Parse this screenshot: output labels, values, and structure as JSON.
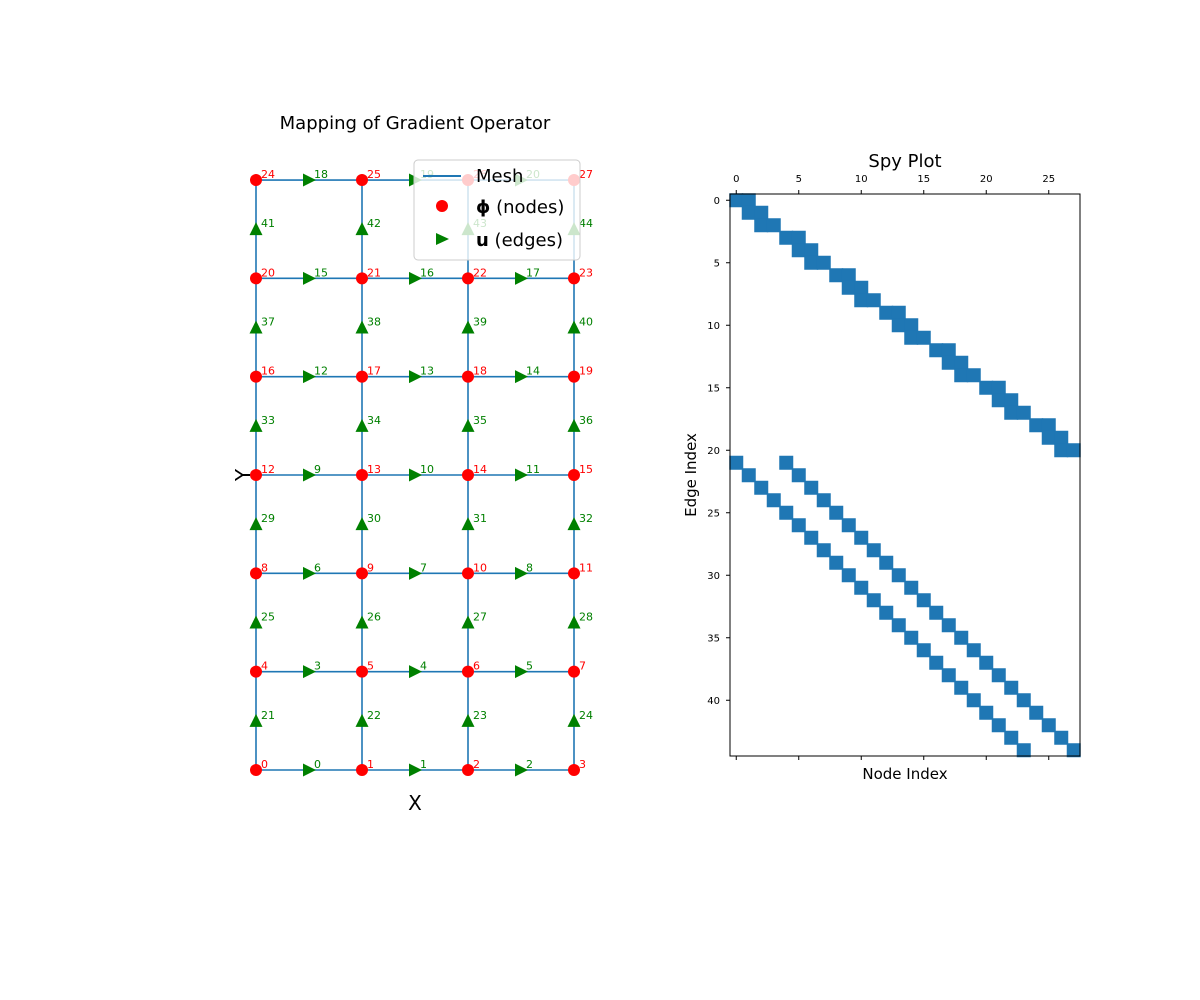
{
  "chart_data": [
    {
      "type": "scatter",
      "title": "Mapping of Gradient Operator",
      "xlabel": "X",
      "ylabel": "Y",
      "grid_size": [
        4,
        7
      ],
      "legend": {
        "placement": "top-right",
        "entries": [
          {
            "key": "mesh",
            "label": "Mesh",
            "color": "#1f77b4"
          },
          {
            "key": "nodes",
            "symbol": "ϕ",
            "label": " (nodes)",
            "color": "#ff0000"
          },
          {
            "key": "edges",
            "symbol": "u",
            "label": " (edges)",
            "color": "#008000"
          }
        ]
      },
      "colors": {
        "mesh": "#1f77b4",
        "nodes": "#ff0000",
        "edges": "#008000"
      },
      "nodes": [
        {
          "id": 0,
          "x": 0,
          "y": 0
        },
        {
          "id": 1,
          "x": 1,
          "y": 0
        },
        {
          "id": 2,
          "x": 2,
          "y": 0
        },
        {
          "id": 3,
          "x": 3,
          "y": 0
        },
        {
          "id": 4,
          "x": 0,
          "y": 1
        },
        {
          "id": 5,
          "x": 1,
          "y": 1
        },
        {
          "id": 6,
          "x": 2,
          "y": 1
        },
        {
          "id": 7,
          "x": 3,
          "y": 1
        },
        {
          "id": 8,
          "x": 0,
          "y": 2
        },
        {
          "id": 9,
          "x": 1,
          "y": 2
        },
        {
          "id": 10,
          "x": 2,
          "y": 2
        },
        {
          "id": 11,
          "x": 3,
          "y": 2
        },
        {
          "id": 12,
          "x": 0,
          "y": 3
        },
        {
          "id": 13,
          "x": 1,
          "y": 3
        },
        {
          "id": 14,
          "x": 2,
          "y": 3
        },
        {
          "id": 15,
          "x": 3,
          "y": 3
        },
        {
          "id": 16,
          "x": 0,
          "y": 4
        },
        {
          "id": 17,
          "x": 1,
          "y": 4
        },
        {
          "id": 18,
          "x": 2,
          "y": 4
        },
        {
          "id": 19,
          "x": 3,
          "y": 4
        },
        {
          "id": 20,
          "x": 0,
          "y": 5
        },
        {
          "id": 21,
          "x": 1,
          "y": 5
        },
        {
          "id": 22,
          "x": 2,
          "y": 5
        },
        {
          "id": 23,
          "x": 3,
          "y": 5
        },
        {
          "id": 24,
          "x": 0,
          "y": 6
        },
        {
          "id": 25,
          "x": 1,
          "y": 6
        },
        {
          "id": 26,
          "x": 2,
          "y": 6
        },
        {
          "id": 27,
          "x": 3,
          "y": 6
        }
      ],
      "edges": [
        {
          "id": 0,
          "x": 0.5,
          "y": 0,
          "dir": "right"
        },
        {
          "id": 1,
          "x": 1.5,
          "y": 0,
          "dir": "right"
        },
        {
          "id": 2,
          "x": 2.5,
          "y": 0,
          "dir": "right"
        },
        {
          "id": 3,
          "x": 0.5,
          "y": 1,
          "dir": "right"
        },
        {
          "id": 4,
          "x": 1.5,
          "y": 1,
          "dir": "right"
        },
        {
          "id": 5,
          "x": 2.5,
          "y": 1,
          "dir": "right"
        },
        {
          "id": 6,
          "x": 0.5,
          "y": 2,
          "dir": "right"
        },
        {
          "id": 7,
          "x": 1.5,
          "y": 2,
          "dir": "right"
        },
        {
          "id": 8,
          "x": 2.5,
          "y": 2,
          "dir": "right"
        },
        {
          "id": 9,
          "x": 0.5,
          "y": 3,
          "dir": "right"
        },
        {
          "id": 10,
          "x": 1.5,
          "y": 3,
          "dir": "right"
        },
        {
          "id": 11,
          "x": 2.5,
          "y": 3,
          "dir": "right"
        },
        {
          "id": 12,
          "x": 0.5,
          "y": 4,
          "dir": "right"
        },
        {
          "id": 13,
          "x": 1.5,
          "y": 4,
          "dir": "right"
        },
        {
          "id": 14,
          "x": 2.5,
          "y": 4,
          "dir": "right"
        },
        {
          "id": 15,
          "x": 0.5,
          "y": 5,
          "dir": "right"
        },
        {
          "id": 16,
          "x": 1.5,
          "y": 5,
          "dir": "right"
        },
        {
          "id": 17,
          "x": 2.5,
          "y": 5,
          "dir": "right"
        },
        {
          "id": 18,
          "x": 0.5,
          "y": 6,
          "dir": "right"
        },
        {
          "id": 19,
          "x": 1.5,
          "y": 6,
          "dir": "right"
        },
        {
          "id": 20,
          "x": 2.5,
          "y": 6,
          "dir": "right"
        },
        {
          "id": 21,
          "x": 0,
          "y": 0.5,
          "dir": "up"
        },
        {
          "id": 22,
          "x": 1,
          "y": 0.5,
          "dir": "up"
        },
        {
          "id": 23,
          "x": 2,
          "y": 0.5,
          "dir": "up"
        },
        {
          "id": 24,
          "x": 3,
          "y": 0.5,
          "dir": "up"
        },
        {
          "id": 25,
          "x": 0,
          "y": 1.5,
          "dir": "up"
        },
        {
          "id": 26,
          "x": 1,
          "y": 1.5,
          "dir": "up"
        },
        {
          "id": 27,
          "x": 2,
          "y": 1.5,
          "dir": "up"
        },
        {
          "id": 28,
          "x": 3,
          "y": 1.5,
          "dir": "up"
        },
        {
          "id": 29,
          "x": 0,
          "y": 2.5,
          "dir": "up"
        },
        {
          "id": 30,
          "x": 1,
          "y": 2.5,
          "dir": "up"
        },
        {
          "id": 31,
          "x": 2,
          "y": 2.5,
          "dir": "up"
        },
        {
          "id": 32,
          "x": 3,
          "y": 2.5,
          "dir": "up"
        },
        {
          "id": 33,
          "x": 0,
          "y": 3.5,
          "dir": "up"
        },
        {
          "id": 34,
          "x": 1,
          "y": 3.5,
          "dir": "up"
        },
        {
          "id": 35,
          "x": 2,
          "y": 3.5,
          "dir": "up"
        },
        {
          "id": 36,
          "x": 3,
          "y": 3.5,
          "dir": "up"
        },
        {
          "id": 37,
          "x": 0,
          "y": 4.5,
          "dir": "up"
        },
        {
          "id": 38,
          "x": 1,
          "y": 4.5,
          "dir": "up"
        },
        {
          "id": 39,
          "x": 2,
          "y": 4.5,
          "dir": "up"
        },
        {
          "id": 40,
          "x": 3,
          "y": 4.5,
          "dir": "up"
        },
        {
          "id": 41,
          "x": 0,
          "y": 5.5,
          "dir": "up"
        },
        {
          "id": 42,
          "x": 1,
          "y": 5.5,
          "dir": "up"
        },
        {
          "id": 43,
          "x": 2,
          "y": 5.5,
          "dir": "up"
        },
        {
          "id": 44,
          "x": 3,
          "y": 5.5,
          "dir": "up"
        }
      ]
    },
    {
      "type": "heatmap",
      "title": "Spy Plot",
      "xlabel": "Node Index",
      "ylabel": "Edge Index",
      "xlim": [
        -0.5,
        27.5
      ],
      "ylim": [
        44.5,
        -0.5
      ],
      "xticks": [
        0,
        5,
        10,
        15,
        20,
        25
      ],
      "yticks": [
        0,
        5,
        10,
        15,
        20,
        25,
        30,
        35,
        40
      ],
      "color": "#1f77b4",
      "nonzeros": [
        [
          0,
          0
        ],
        [
          0,
          1
        ],
        [
          1,
          1
        ],
        [
          1,
          2
        ],
        [
          2,
          2
        ],
        [
          2,
          3
        ],
        [
          3,
          4
        ],
        [
          3,
          5
        ],
        [
          4,
          5
        ],
        [
          4,
          6
        ],
        [
          5,
          6
        ],
        [
          5,
          7
        ],
        [
          6,
          8
        ],
        [
          6,
          9
        ],
        [
          7,
          9
        ],
        [
          7,
          10
        ],
        [
          8,
          10
        ],
        [
          8,
          11
        ],
        [
          9,
          12
        ],
        [
          9,
          13
        ],
        [
          10,
          13
        ],
        [
          10,
          14
        ],
        [
          11,
          14
        ],
        [
          11,
          15
        ],
        [
          12,
          16
        ],
        [
          12,
          17
        ],
        [
          13,
          17
        ],
        [
          13,
          18
        ],
        [
          14,
          18
        ],
        [
          14,
          19
        ],
        [
          15,
          20
        ],
        [
          15,
          21
        ],
        [
          16,
          21
        ],
        [
          16,
          22
        ],
        [
          17,
          22
        ],
        [
          17,
          23
        ],
        [
          18,
          24
        ],
        [
          18,
          25
        ],
        [
          19,
          25
        ],
        [
          19,
          26
        ],
        [
          20,
          26
        ],
        [
          20,
          27
        ],
        [
          21,
          0
        ],
        [
          21,
          4
        ],
        [
          22,
          1
        ],
        [
          22,
          5
        ],
        [
          23,
          2
        ],
        [
          23,
          6
        ],
        [
          24,
          3
        ],
        [
          24,
          7
        ],
        [
          25,
          4
        ],
        [
          25,
          8
        ],
        [
          26,
          5
        ],
        [
          26,
          9
        ],
        [
          27,
          6
        ],
        [
          27,
          10
        ],
        [
          28,
          7
        ],
        [
          28,
          11
        ],
        [
          29,
          8
        ],
        [
          29,
          12
        ],
        [
          30,
          9
        ],
        [
          30,
          13
        ],
        [
          31,
          10
        ],
        [
          31,
          14
        ],
        [
          32,
          11
        ],
        [
          32,
          15
        ],
        [
          33,
          12
        ],
        [
          33,
          16
        ],
        [
          34,
          13
        ],
        [
          34,
          17
        ],
        [
          35,
          14
        ],
        [
          35,
          18
        ],
        [
          36,
          15
        ],
        [
          36,
          19
        ],
        [
          37,
          16
        ],
        [
          37,
          20
        ],
        [
          38,
          17
        ],
        [
          38,
          21
        ],
        [
          39,
          18
        ],
        [
          39,
          22
        ],
        [
          40,
          19
        ],
        [
          40,
          23
        ],
        [
          41,
          20
        ],
        [
          41,
          24
        ],
        [
          42,
          21
        ],
        [
          42,
          25
        ],
        [
          43,
          22
        ],
        [
          43,
          26
        ],
        [
          44,
          23
        ],
        [
          44,
          27
        ]
      ]
    }
  ]
}
